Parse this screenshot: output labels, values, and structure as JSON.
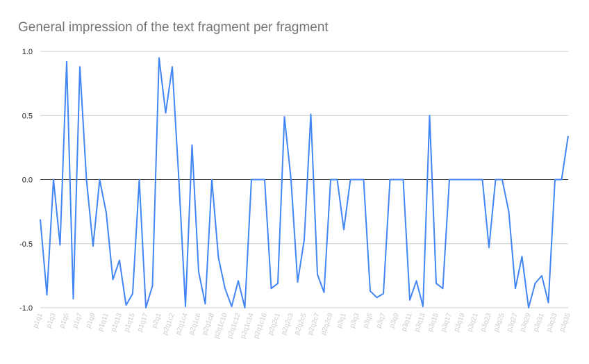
{
  "chart_data": {
    "type": "line",
    "title": "General impression of the text fragment per fragment",
    "categories": [
      "p1q1",
      null,
      "p1q3",
      null,
      "p1q5",
      null,
      "p1q7",
      null,
      "p1q9",
      null,
      "p1q11",
      null,
      "p1q13",
      null,
      "p1q15",
      null,
      "p1q17",
      null,
      "p2q1",
      null,
      "p2q1c2",
      null,
      "p2q1c4",
      null,
      "p2q1c6",
      null,
      "p2q1c8",
      null,
      "p2q1c10",
      null,
      "p2q1c12",
      null,
      "p2q1c14",
      null,
      "p2q1c16",
      null,
      "p2q2c1",
      null,
      "p2q2c3",
      null,
      "p2q2c5",
      null,
      "p2q2c7",
      null,
      "p2q2c9",
      null,
      "p3q1",
      null,
      "p3q3",
      null,
      "p3q5",
      null,
      "p3q7",
      null,
      "p3q9",
      null,
      "p3q11",
      null,
      "p3q13",
      null,
      "p3q15",
      null,
      "p3q17",
      null,
      "p3q19",
      null,
      "p3q21",
      null,
      "p3q23",
      null,
      "p3q25",
      null,
      "p3q27",
      null,
      "p3q29",
      null,
      "p3q31",
      null,
      "p3q33",
      null,
      "p3q35"
    ],
    "series": [
      {
        "name": "General impression",
        "color": "#4285f4",
        "values": [
          -0.31,
          -0.9,
          0,
          -0.51,
          0.92,
          -0.93,
          0.88,
          0,
          -0.52,
          0,
          -0.26,
          -0.78,
          -0.63,
          -0.98,
          -0.89,
          0,
          -1,
          -0.83,
          0.95,
          0.52,
          0.88,
          0,
          -0.99,
          0.27,
          -0.72,
          -0.97,
          0,
          -0.61,
          -0.85,
          -0.99,
          -0.79,
          -1,
          0,
          0,
          0,
          -0.85,
          -0.81,
          0.49,
          0,
          -0.8,
          -0.47,
          0.51,
          -0.74,
          -0.88,
          0,
          0,
          -0.39,
          0,
          0,
          0,
          -0.87,
          -0.92,
          -0.89,
          0,
          0,
          0,
          -0.94,
          -0.79,
          -0.99,
          0.5,
          -0.81,
          -0.85,
          0,
          0,
          0,
          0,
          0,
          0,
          -0.53,
          0,
          0,
          -0.25,
          -0.85,
          -0.6,
          -1,
          -0.81,
          -0.75,
          -0.96,
          0,
          0,
          0.34
        ]
      }
    ],
    "ylim": [
      -1,
      1
    ],
    "yticks": [
      {
        "value": -1,
        "label": "-1.0"
      },
      {
        "value": -0.5,
        "label": "-0.5"
      },
      {
        "value": 0,
        "label": "0.0"
      },
      {
        "value": 0.5,
        "label": "0.5"
      },
      {
        "value": 1,
        "label": "1.0"
      }
    ],
    "grid": true
  }
}
